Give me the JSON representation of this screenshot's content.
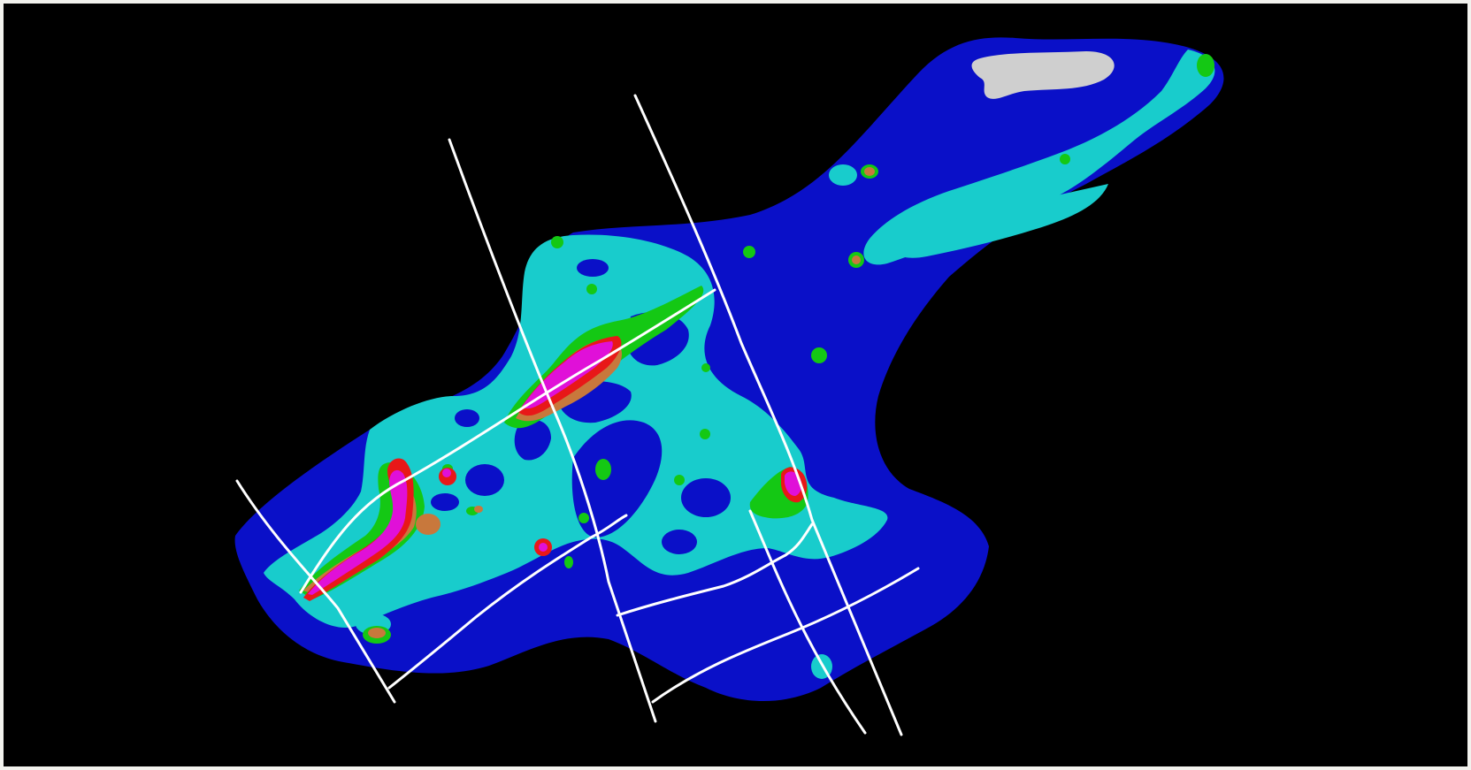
{
  "viewport": {
    "background": "#000000",
    "border_color": "#f2f2ee"
  },
  "legend_colors": {
    "deep_blue": "#0a10c8",
    "cyan": "#18cccc",
    "green": "#14c814",
    "orange": "#c8783c",
    "red": "#e81818",
    "magenta": "#e010d8",
    "grey": "#cfcfcf",
    "line": "#ffffff"
  }
}
